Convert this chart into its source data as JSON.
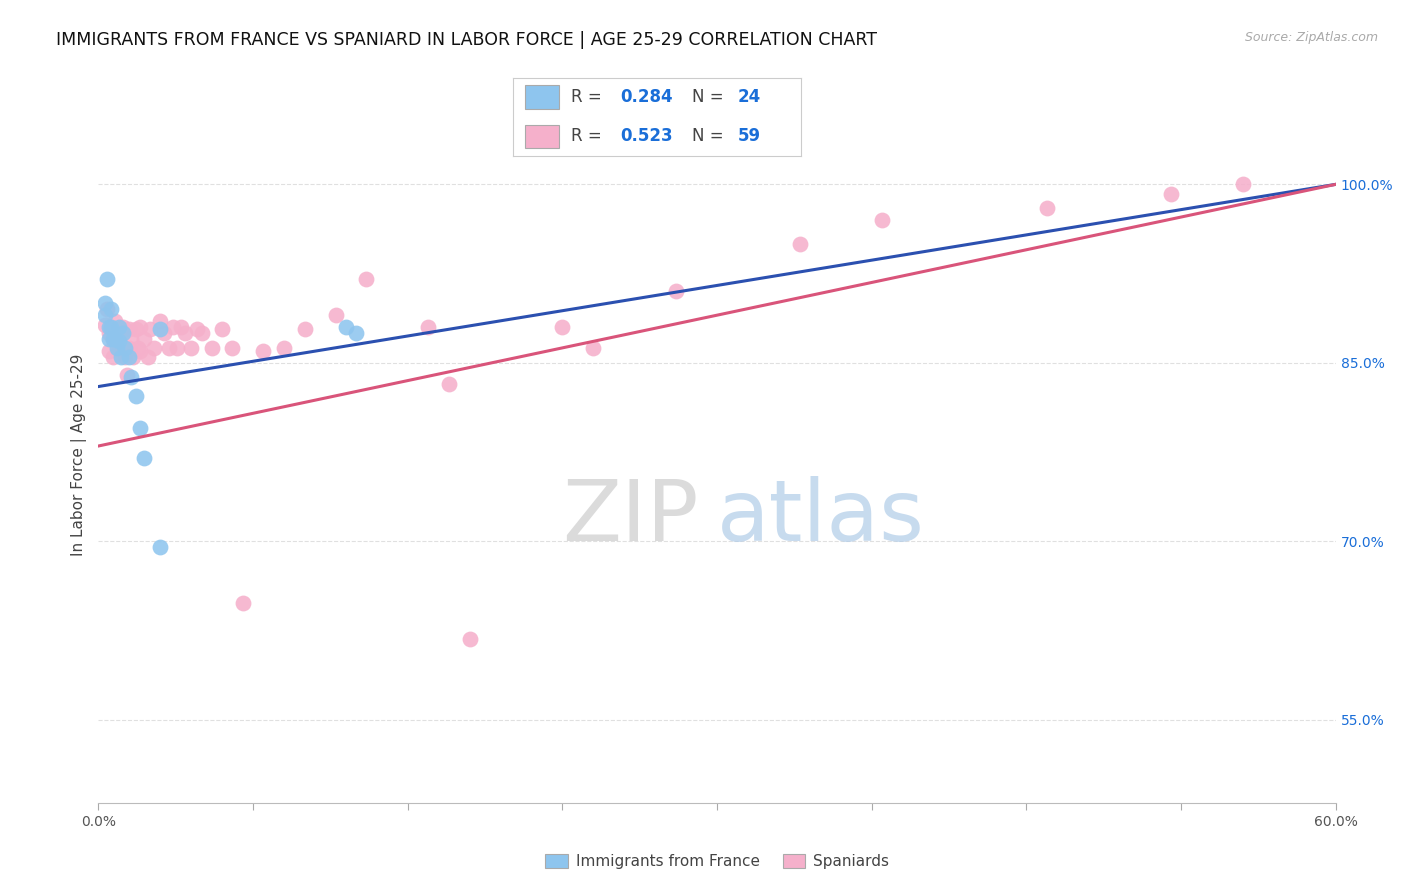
{
  "title": "IMMIGRANTS FROM FRANCE VS SPANIARD IN LABOR FORCE | AGE 25-29 CORRELATION CHART",
  "source_text": "Source: ZipAtlas.com",
  "ylabel": "In Labor Force | Age 25-29",
  "xlim": [
    0.0,
    0.6
  ],
  "ylim": [
    0.48,
    1.065
  ],
  "xticks": [
    0.0,
    0.075,
    0.15,
    0.225,
    0.3,
    0.375,
    0.45,
    0.525,
    0.6
  ],
  "xtick_labels": [
    "0.0%",
    "",
    "",
    "",
    "",
    "",
    "",
    "",
    "60.0%"
  ],
  "yticks": [
    0.55,
    0.7,
    0.85,
    1.0
  ],
  "ytick_labels": [
    "55.0%",
    "70.0%",
    "85.0%",
    "100.0%"
  ],
  "R_blue": 0.284,
  "N_blue": 24,
  "R_pink": 0.523,
  "N_pink": 59,
  "blue_color": "#8EC5EE",
  "pink_color": "#F5B0CB",
  "line_blue": "#2B50B0",
  "line_pink": "#D9547A",
  "legend_R_color": "#1a6ed8",
  "blue_scatter_x": [
    0.003,
    0.003,
    0.004,
    0.005,
    0.005,
    0.006,
    0.006,
    0.007,
    0.008,
    0.009,
    0.01,
    0.01,
    0.011,
    0.012,
    0.013,
    0.015,
    0.016,
    0.018,
    0.02,
    0.022,
    0.03,
    0.12,
    0.125,
    0.03
  ],
  "blue_scatter_y": [
    0.9,
    0.89,
    0.92,
    0.88,
    0.87,
    0.895,
    0.88,
    0.87,
    0.87,
    0.862,
    0.88,
    0.868,
    0.855,
    0.875,
    0.862,
    0.855,
    0.838,
    0.822,
    0.795,
    0.77,
    0.878,
    0.88,
    0.875,
    0.695
  ],
  "pink_scatter_x": [
    0.003,
    0.004,
    0.005,
    0.005,
    0.006,
    0.007,
    0.007,
    0.008,
    0.009,
    0.01,
    0.01,
    0.011,
    0.011,
    0.012,
    0.012,
    0.013,
    0.014,
    0.015,
    0.015,
    0.016,
    0.017,
    0.018,
    0.019,
    0.02,
    0.02,
    0.022,
    0.024,
    0.025,
    0.027,
    0.03,
    0.032,
    0.034,
    0.036,
    0.038,
    0.04,
    0.042,
    0.045,
    0.048,
    0.05,
    0.055,
    0.06,
    0.065,
    0.07,
    0.08,
    0.09,
    0.1,
    0.115,
    0.13,
    0.16,
    0.17,
    0.18,
    0.225,
    0.24,
    0.28,
    0.34,
    0.38,
    0.46,
    0.52,
    0.555
  ],
  "pink_scatter_y": [
    0.882,
    0.895,
    0.875,
    0.86,
    0.88,
    0.87,
    0.855,
    0.885,
    0.87,
    0.878,
    0.862,
    0.878,
    0.862,
    0.88,
    0.862,
    0.855,
    0.84,
    0.878,
    0.862,
    0.87,
    0.855,
    0.878,
    0.862,
    0.88,
    0.86,
    0.87,
    0.855,
    0.878,
    0.862,
    0.885,
    0.875,
    0.862,
    0.88,
    0.862,
    0.88,
    0.875,
    0.862,
    0.878,
    0.875,
    0.862,
    0.878,
    0.862,
    0.648,
    0.86,
    0.862,
    0.878,
    0.89,
    0.92,
    0.88,
    0.832,
    0.618,
    0.88,
    0.862,
    0.91,
    0.95,
    0.97,
    0.98,
    0.992,
    1.0
  ],
  "background_color": "#ffffff",
  "grid_color": "#e0e0e0"
}
